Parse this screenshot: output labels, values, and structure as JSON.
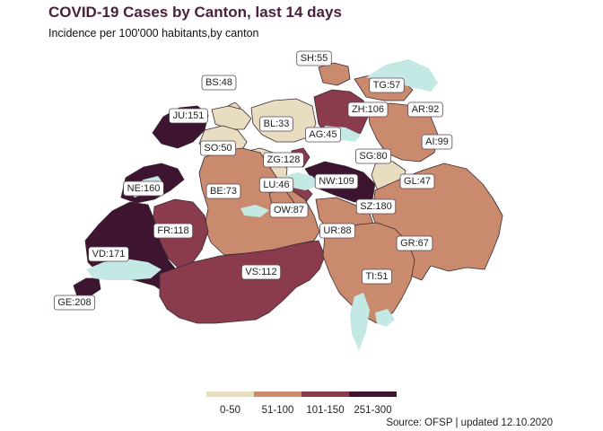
{
  "title": "COVID-19 Cases by Canton, last 14 days",
  "subtitle": "Incidence per 100'000 habitants,by canton",
  "source": "Source: OFSP | updated 12.10.2020",
  "colors": {
    "bin_0_50": "#e8ddc0",
    "bin_51_100": "#c98a6e",
    "bin_101_150": "#8a3b4e",
    "bin_251_300": "#3d1530",
    "lakes": "#c4e8e4",
    "border": "#3a2a30"
  },
  "legend": [
    {
      "label": "0-50",
      "color": "#e8ddc0"
    },
    {
      "label": "51-100",
      "color": "#c98a6e"
    },
    {
      "label": "101-150",
      "color": "#8a3b4e"
    },
    {
      "label": "251-300",
      "color": "#3d1530"
    }
  ],
  "chart_data": {
    "type": "choropleth",
    "value_label": "Incidence per 100'000 habitants",
    "cantons": [
      {
        "code": "SH",
        "value": 55,
        "label": "SH:55"
      },
      {
        "code": "BS",
        "value": 48,
        "label": "BS:48"
      },
      {
        "code": "TG",
        "value": 57,
        "label": "TG:57"
      },
      {
        "code": "JU",
        "value": 151,
        "label": "JU:151"
      },
      {
        "code": "ZH",
        "value": 106,
        "label": "ZH:106"
      },
      {
        "code": "AR",
        "value": 92,
        "label": "AR:92"
      },
      {
        "code": "BL",
        "value": 33,
        "label": "BL:33"
      },
      {
        "code": "AG",
        "value": 45,
        "label": "AG:45"
      },
      {
        "code": "AI",
        "value": 99,
        "label": "AI:99"
      },
      {
        "code": "SO",
        "value": 50,
        "label": "SO:50"
      },
      {
        "code": "SG",
        "value": 80,
        "label": "SG:80"
      },
      {
        "code": "ZG",
        "value": 128,
        "label": "ZG:128"
      },
      {
        "code": "NE",
        "value": 160,
        "label": "NE:160"
      },
      {
        "code": "LU",
        "value": 46,
        "label": "LU:46"
      },
      {
        "code": "NW",
        "value": 109,
        "label": "NW:109"
      },
      {
        "code": "GL",
        "value": 47,
        "label": "GL:47"
      },
      {
        "code": "BE",
        "value": 73,
        "label": "BE:73"
      },
      {
        "code": "OW",
        "value": 87,
        "label": "OW:87"
      },
      {
        "code": "SZ",
        "value": 180,
        "label": "SZ:180"
      },
      {
        "code": "FR",
        "value": 118,
        "label": "FR:118"
      },
      {
        "code": "UR",
        "value": 88,
        "label": "UR:88"
      },
      {
        "code": "GR",
        "value": 67,
        "label": "GR:67"
      },
      {
        "code": "VD",
        "value": 171,
        "label": "VD:171"
      },
      {
        "code": "VS",
        "value": 112,
        "label": "VS:112"
      },
      {
        "code": "TI",
        "value": 51,
        "label": "TI:51"
      },
      {
        "code": "GE",
        "value": 208,
        "label": "GE:208"
      }
    ]
  }
}
